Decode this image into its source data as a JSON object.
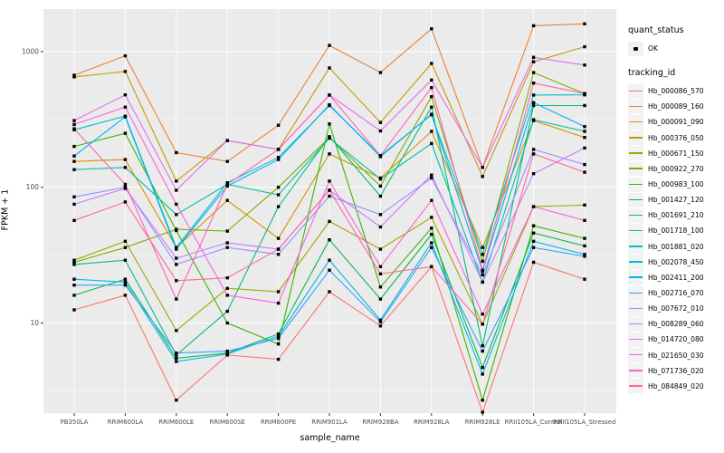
{
  "legend": {
    "quant_status": {
      "title": "quant_status",
      "items": [
        "OK"
      ]
    },
    "tracking": {
      "title": "tracking_id"
    }
  },
  "chart_data": {
    "type": "line",
    "title": "",
    "xlabel": "sample_name",
    "ylabel": "FPKM + 1",
    "y_scale": "log10",
    "ylim": [
      2.1,
      2050
    ],
    "y_ticks": [
      10,
      100,
      1000
    ],
    "y_minor_gridlines": [
      3.162,
      31.62,
      316.2
    ],
    "grid": "white-on-gray-panel",
    "legend_position": "right",
    "point_marker": "black-square-dot",
    "categories": [
      "PB350LA",
      "RRIM600LA",
      "RRIM600LE",
      "RRIM600SE",
      "RRIM600PE",
      "RRIM901LA",
      "RRIM928BA",
      "RRIM928LA",
      "RRIM928LE",
      "RRII105LA_Control",
      "RRII105LA_Stressed"
    ],
    "series": [
      {
        "name": "Hb_000086_570",
        "color": "#F8766D",
        "values": [
          12.5,
          16,
          2.7,
          5.8,
          5.4,
          17,
          9.5,
          26,
          2.2,
          28,
          21
        ]
      },
      {
        "name": "Hb_000089_160",
        "color": "#EA8331",
        "values": [
          670,
          930,
          180,
          155,
          286,
          1110,
          700,
          1470,
          140,
          1550,
          1600
        ]
      },
      {
        "name": "Hb_000091_090",
        "color": "#D89000",
        "values": [
          155,
          160,
          36,
          80,
          42,
          176,
          117,
          258,
          36,
          310,
          233
        ]
      },
      {
        "name": "Hb_000376_050",
        "color": "#C09B00",
        "values": [
          650,
          713,
          111,
          221,
          190,
          757,
          300,
          818,
          120,
          840,
          1085
        ]
      },
      {
        "name": "Hb_000671_150",
        "color": "#A3A500",
        "values": [
          29,
          40,
          8.8,
          18,
          17,
          56,
          35,
          60,
          9.8,
          72,
          74
        ]
      },
      {
        "name": "Hb_000922_270",
        "color": "#7CAE00",
        "values": [
          28,
          36,
          49,
          47.5,
          100,
          233,
          102,
          465,
          28.5,
          700,
          490
        ]
      },
      {
        "name": "Hb_000983_100",
        "color": "#39B600",
        "values": [
          200,
          250,
          48,
          10,
          7,
          293,
          18.4,
          50,
          2.7,
          52,
          42
        ]
      },
      {
        "name": "Hb_001427_120",
        "color": "#00BB4E",
        "values": [
          16,
          21,
          5.5,
          6,
          8.3,
          41,
          15,
          45,
          4.7,
          46,
          37
        ]
      },
      {
        "name": "Hb_001691_210",
        "color": "#00BF7D",
        "values": [
          27,
          29,
          5.8,
          12.2,
          72,
          236,
          86,
          390,
          6.8,
          400,
          400
        ]
      },
      {
        "name": "Hb_001718_100",
        "color": "#00C1A3",
        "values": [
          135,
          140,
          63,
          105,
          88,
          230,
          115,
          210,
          20,
          315,
          258
        ]
      },
      {
        "name": "Hb_001881_020",
        "color": "#00BFC4",
        "values": [
          265,
          334,
          36,
          108,
          166,
          400,
          171,
          342,
          32,
          478,
          480
        ]
      },
      {
        "name": "Hb_002078_450",
        "color": "#00BAE0",
        "values": [
          21,
          20,
          5.2,
          5.9,
          8,
          29,
          10.5,
          39,
          4.2,
          40,
          32
        ]
      },
      {
        "name": "Hb_002411_200",
        "color": "#00B0F6",
        "values": [
          170,
          330,
          35,
          102,
          160,
          405,
          168,
          345,
          24,
          420,
          280
        ]
      },
      {
        "name": "Hb_002716_070",
        "color": "#35A2FF",
        "values": [
          19,
          19,
          6,
          6.2,
          7.7,
          24.5,
          10.2,
          36,
          6.2,
          36,
          31
        ]
      },
      {
        "name": "Hb_007672_010",
        "color": "#9590FF",
        "values": [
          85,
          100,
          27,
          36,
          32,
          86,
          63,
          117,
          22.6,
          190,
          147
        ]
      },
      {
        "name": "Hb_008289_060",
        "color": "#C77CFF",
        "values": [
          75,
          98,
          30,
          39,
          35,
          95,
          51,
          123,
          20,
          126,
          195
        ]
      },
      {
        "name": "Hb_014720_080",
        "color": "#E76BF3",
        "values": [
          310,
          480,
          95,
          221,
          190,
          478,
          260,
          617,
          140,
          906,
          795
        ]
      },
      {
        "name": "Hb_021650_030",
        "color": "#FA62DB",
        "values": [
          290,
          390,
          75,
          16,
          14,
          111,
          26,
          80,
          11.6,
          72,
          57
        ]
      },
      {
        "name": "Hb_071736_020",
        "color": "#FF62BC",
        "values": [
          270,
          105,
          15,
          105,
          190,
          478,
          171,
          542,
          24.5,
          586,
          490
        ]
      },
      {
        "name": "Hb_084849_020",
        "color": "#FF6A98",
        "values": [
          57,
          78,
          20.5,
          21.5,
          35,
          95,
          23,
          26,
          9.8,
          176,
          129
        ]
      }
    ]
  }
}
